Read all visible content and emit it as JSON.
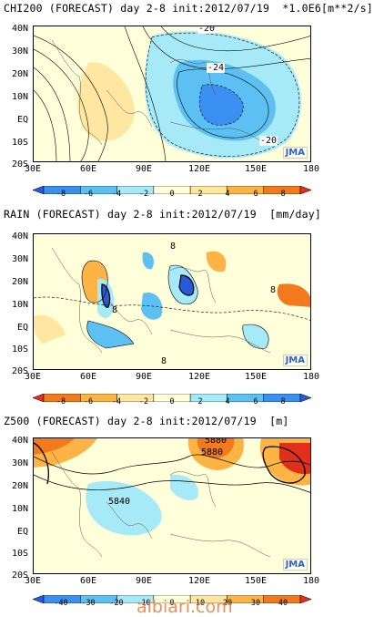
{
  "panels": [
    {
      "title": "CHI200 (FORECAST) day 2-8 init:2012/07/19  *1.0E6[m**2/s]",
      "contour_labels": [
        "-20",
        "-24",
        "-20"
      ],
      "colorbar": [
        "-8",
        "-6",
        "-4",
        "-2",
        "0",
        "2",
        "4",
        "6",
        "8"
      ],
      "colors": [
        "#2b57d9",
        "#3a8ff0",
        "#5cc0f2",
        "#a6e9f7",
        "#ffffd9",
        "#ffe7a1",
        "#fdb444",
        "#f27a1c",
        "#e0301c"
      ]
    },
    {
      "title": "RAIN (FORECAST) day 2-8 init:2012/07/19  [mm/day]",
      "contour_labels": [
        "8",
        "8",
        "8",
        "8"
      ],
      "colorbar": [
        "-8",
        "-6",
        "-4",
        "-2",
        "0",
        "2",
        "4",
        "6",
        "8"
      ],
      "colors": [
        "#e0301c",
        "#f27a1c",
        "#fdb444",
        "#ffe7a1",
        "#ffffd9",
        "#a6e9f7",
        "#5cc0f2",
        "#3a8ff0",
        "#2b57d9"
      ]
    },
    {
      "title": "Z500 (FORECAST) day 2-8 init:2012/07/19  [m]",
      "contour_labels": [
        "5880",
        "5880",
        "5840"
      ],
      "colorbar": [
        "-40",
        "-30",
        "-20",
        "-10",
        "0",
        "10",
        "20",
        "30",
        "40"
      ],
      "colors": [
        "#2b57d9",
        "#3a8ff0",
        "#5cc0f2",
        "#a6e9f7",
        "#ffffd9",
        "#ffe7a1",
        "#fdb444",
        "#f27a1c",
        "#e0301c"
      ]
    }
  ],
  "lat_labels": [
    "40N",
    "30N",
    "20N",
    "10N",
    "EQ",
    "10S",
    "20S"
  ],
  "lon_labels": [
    "30E",
    "60E",
    "90E",
    "120E",
    "150E",
    "180"
  ],
  "logo": "JMA",
  "watermark": "albiari.com"
}
